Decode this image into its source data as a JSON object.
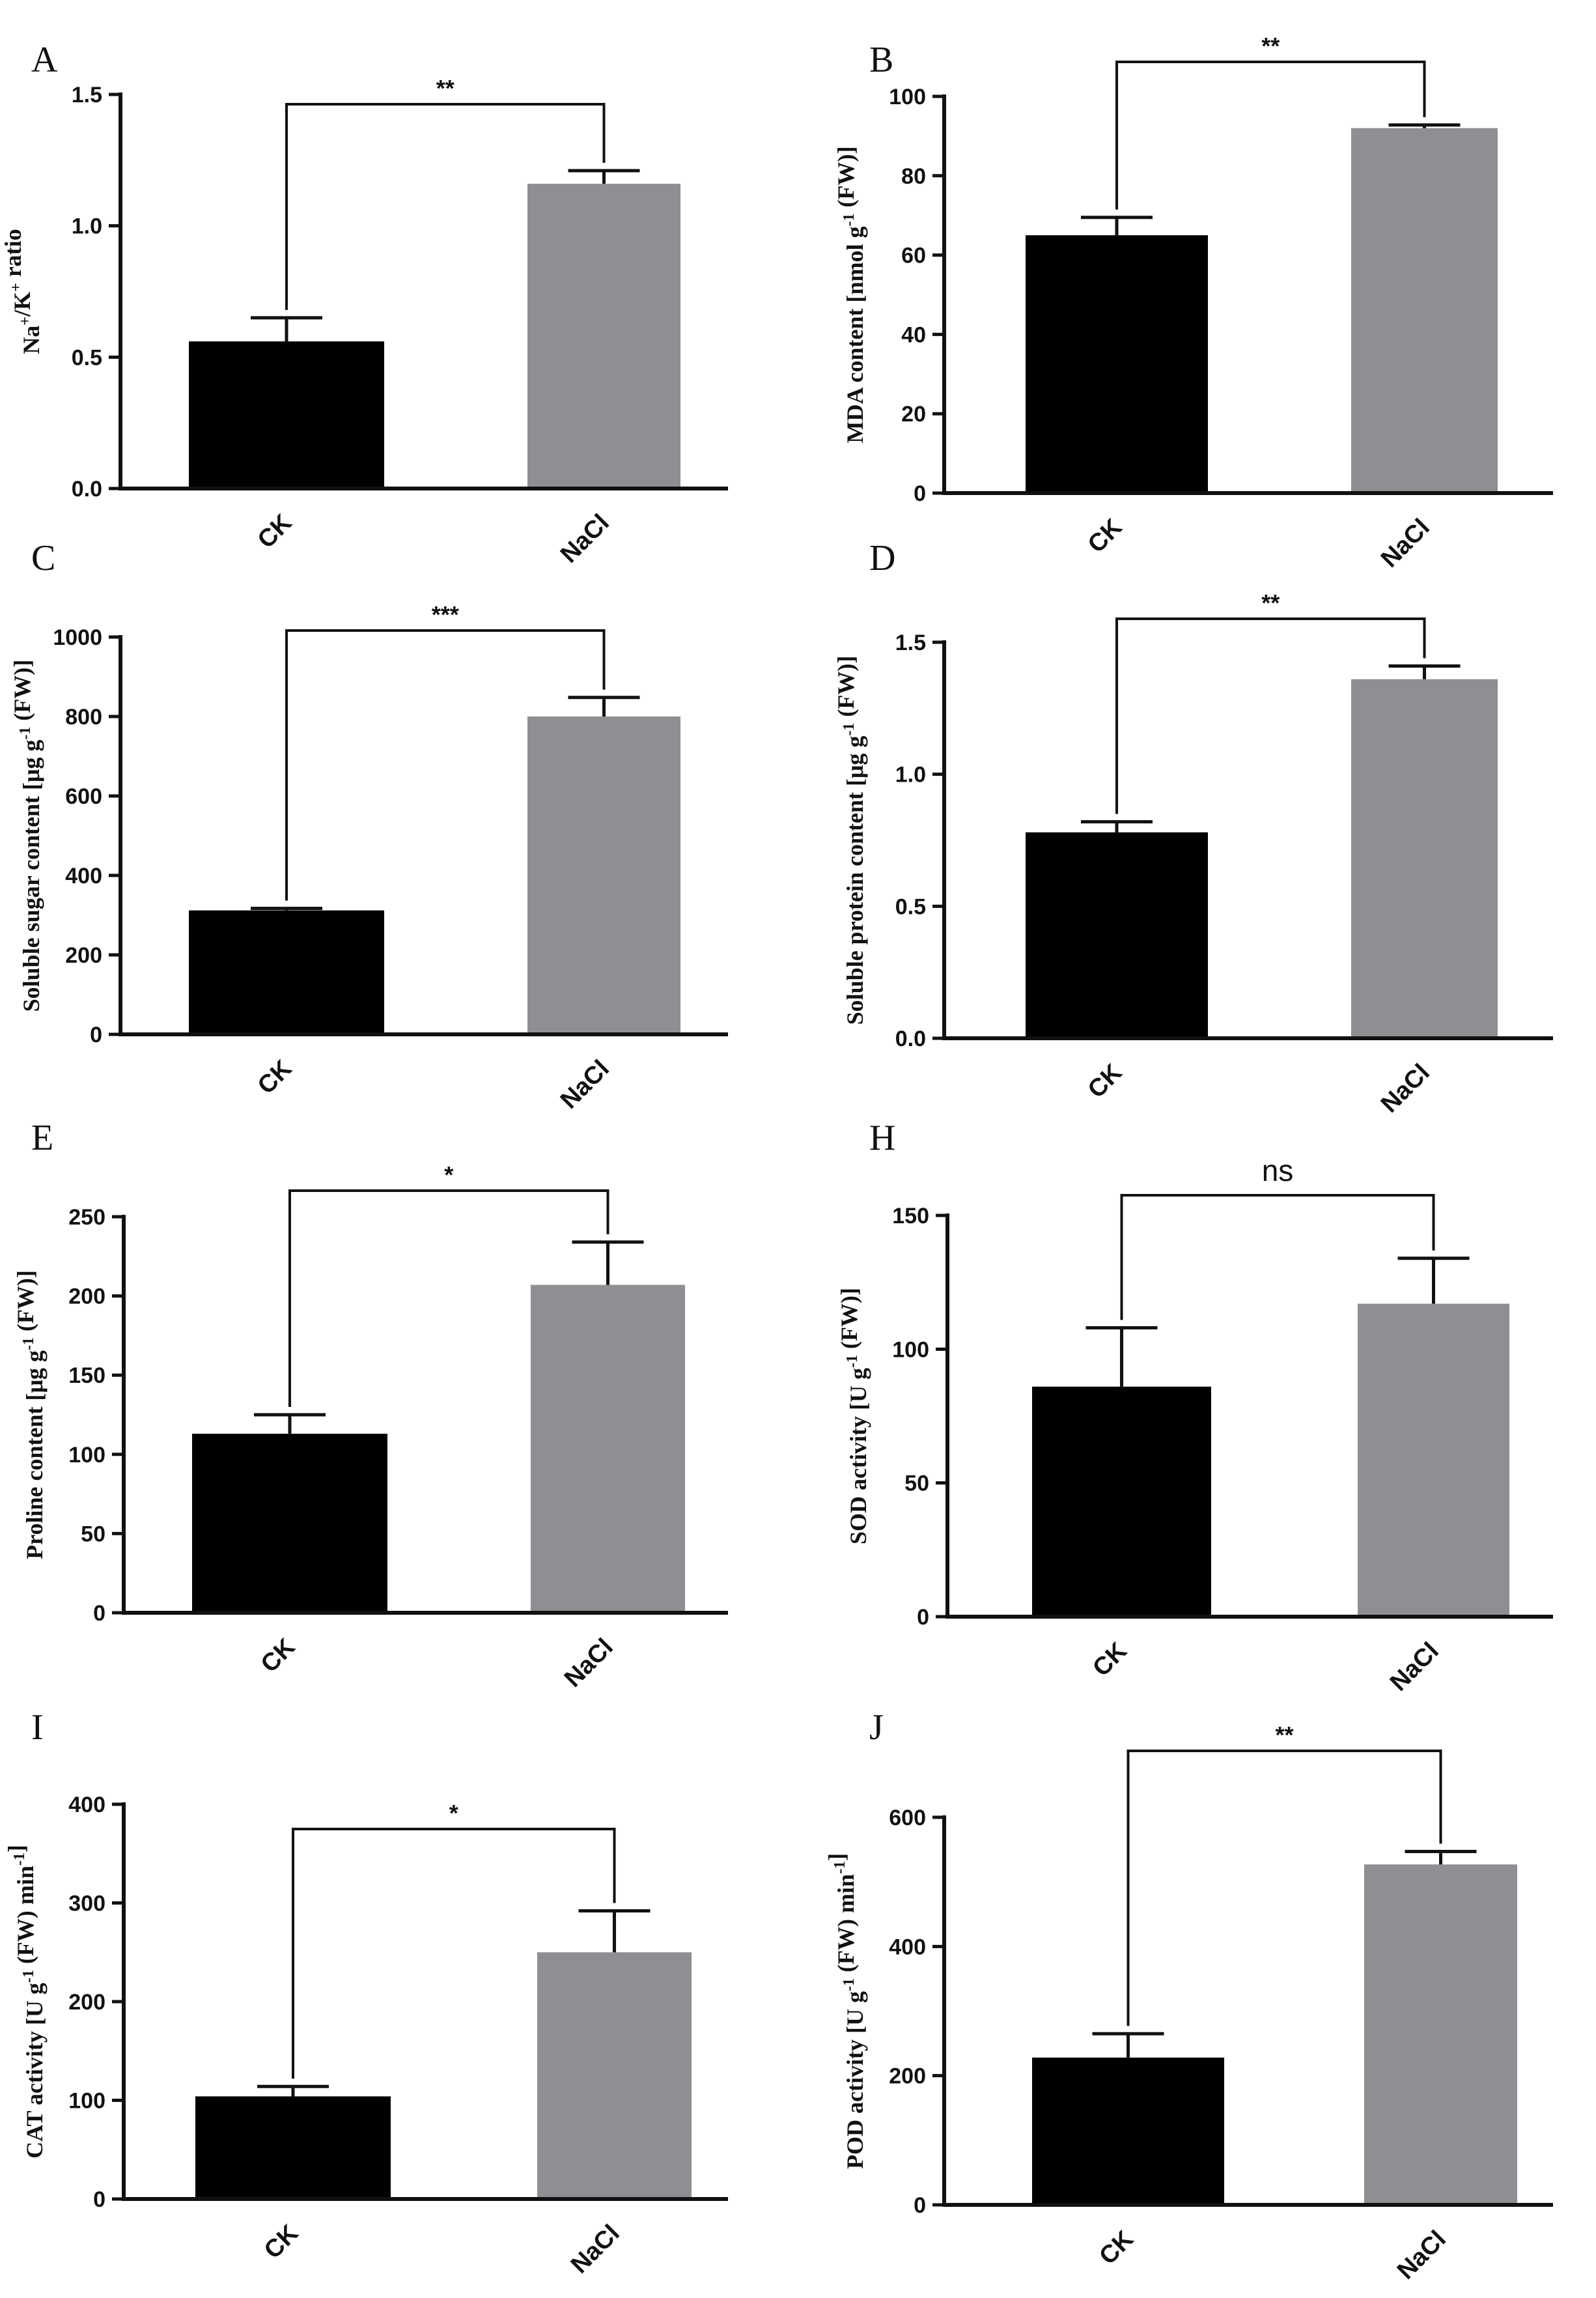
{
  "figure": {
    "colors": {
      "CK": "#000000",
      "NaCl": "#8e8e93",
      "axis": "#111111"
    }
  },
  "chart_data": [
    {
      "panel": "A",
      "type": "bar",
      "categories": [
        "CK",
        "NaCl"
      ],
      "values": [
        0.56,
        1.16
      ],
      "errors": [
        0.09,
        0.05
      ],
      "ylim": [
        0,
        1.5
      ],
      "yticks": [
        "0.0",
        "0.5",
        "1.0",
        "1.5"
      ],
      "ylabel_parts": [
        [
          "Na",
          ""
        ],
        [
          "+",
          "sup"
        ],
        [
          "/K",
          ""
        ],
        [
          "+",
          "sup"
        ],
        [
          " ratio",
          ""
        ]
      ],
      "significance": "**"
    },
    {
      "panel": "B",
      "type": "bar",
      "categories": [
        "CK",
        "NaCl"
      ],
      "values": [
        65,
        92
      ],
      "errors": [
        4.5,
        0.8
      ],
      "ylim": [
        0,
        100
      ],
      "yticks": [
        "0",
        "20",
        "40",
        "60",
        "80",
        "100"
      ],
      "ylabel_parts": [
        [
          "MDA content [nmol g",
          ""
        ],
        [
          "-1",
          "sup"
        ],
        [
          " (FW)]",
          ""
        ]
      ],
      "significance": "**"
    },
    {
      "panel": "C",
      "type": "bar",
      "categories": [
        "CK",
        "NaCl"
      ],
      "values": [
        312,
        800
      ],
      "errors": [
        5,
        48
      ],
      "ylim": [
        0,
        1000
      ],
      "yticks": [
        "0",
        "200",
        "400",
        "600",
        "800",
        "1000"
      ],
      "ylabel_parts": [
        [
          "Soluble sugar content [μg g",
          ""
        ],
        [
          "-1",
          "sup"
        ],
        [
          " (FW)]",
          ""
        ]
      ],
      "significance": "***"
    },
    {
      "panel": "D",
      "type": "bar",
      "categories": [
        "CK",
        "NaCl"
      ],
      "values": [
        0.78,
        1.36
      ],
      "errors": [
        0.04,
        0.05
      ],
      "ylim": [
        0,
        1.5
      ],
      "yticks": [
        "0.0",
        "0.5",
        "1.0",
        "1.5"
      ],
      "ylabel_parts": [
        [
          "Soluble protein content [μg g",
          ""
        ],
        [
          "-1",
          "sup"
        ],
        [
          " (FW)]",
          ""
        ]
      ],
      "significance": "**"
    },
    {
      "panel": "E",
      "type": "bar",
      "categories": [
        "CK",
        "NaCl"
      ],
      "values": [
        113,
        207
      ],
      "errors": [
        12,
        27
      ],
      "ylim": [
        0,
        250
      ],
      "yticks": [
        "0",
        "50",
        "100",
        "150",
        "200",
        "250"
      ],
      "ylabel_parts": [
        [
          "Proline content [μg g",
          ""
        ],
        [
          "-1",
          "sup"
        ],
        [
          " (FW)]",
          ""
        ]
      ],
      "significance": "*"
    },
    {
      "panel": "H",
      "type": "bar",
      "categories": [
        "CK",
        "NaCl"
      ],
      "values": [
        86,
        117
      ],
      "errors": [
        22,
        17
      ],
      "ylim": [
        0,
        150
      ],
      "yticks": [
        "0",
        "50",
        "100",
        "150"
      ],
      "ylabel_parts": [
        [
          "SOD activity [U g",
          ""
        ],
        [
          "-1",
          "sup"
        ],
        [
          " (FW)]",
          ""
        ]
      ],
      "significance": "ns"
    },
    {
      "panel": "I",
      "type": "bar",
      "categories": [
        "CK",
        "NaCl"
      ],
      "values": [
        104,
        250
      ],
      "errors": [
        10,
        42
      ],
      "ylim": [
        0,
        400
      ],
      "yticks": [
        "0",
        "100",
        "200",
        "300",
        "400"
      ],
      "ylabel_parts": [
        [
          "CAT activity [U g",
          ""
        ],
        [
          "-1",
          "sup"
        ],
        [
          " (FW) min",
          ""
        ],
        [
          "-1",
          "sup"
        ],
        [
          "]",
          ""
        ]
      ],
      "significance": "*"
    },
    {
      "panel": "J",
      "type": "bar",
      "categories": [
        "CK",
        "NaCl"
      ],
      "values": [
        228,
        527
      ],
      "errors": [
        37,
        20
      ],
      "ylim": [
        0,
        600
      ],
      "yticks": [
        "0",
        "200",
        "400",
        "600"
      ],
      "ylabel_parts": [
        [
          "POD activity [U g",
          ""
        ],
        [
          "-1",
          "sup"
        ],
        [
          " (FW) min",
          ""
        ],
        [
          "-1",
          "sup"
        ],
        [
          "]",
          ""
        ]
      ],
      "significance": "**"
    }
  ]
}
